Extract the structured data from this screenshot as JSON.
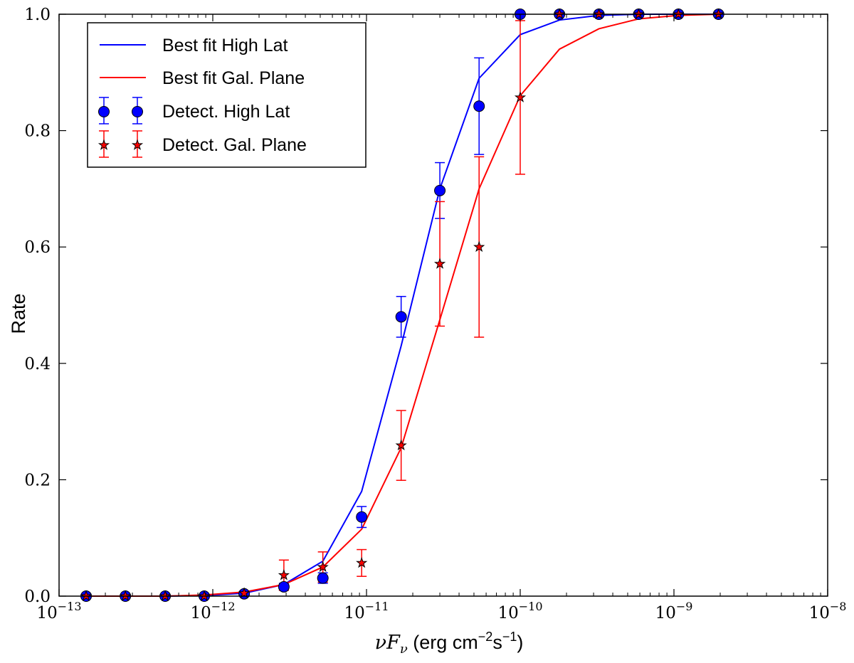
{
  "chart_data": {
    "type": "scatter",
    "title": "",
    "xscale": "log",
    "xlim": [
      1e-13,
      1e-08
    ],
    "ylim": [
      0.0,
      1.0
    ],
    "xlabel": {
      "nu_prefix": "ν",
      "F": "F",
      "sub": "ν",
      "unit_open": " (erg cm",
      "unit_exp1": "−2",
      "unit_mid": "s",
      "unit_exp2": "−1",
      "unit_close": ")"
    },
    "ylabel": "Rate",
    "x_ticks": [
      {
        "base": "10",
        "exp": "−13",
        "value": 1e-13
      },
      {
        "base": "10",
        "exp": "−12",
        "value": 1e-12
      },
      {
        "base": "10",
        "exp": "−11",
        "value": 1e-11
      },
      {
        "base": "10",
        "exp": "−10",
        "value": 1e-10
      },
      {
        "base": "10",
        "exp": "−9",
        "value": 1e-09
      },
      {
        "base": "10",
        "exp": "−8",
        "value": 1e-08
      }
    ],
    "y_ticks": [
      {
        "label": "0.0",
        "value": 0.0
      },
      {
        "label": "0.2",
        "value": 0.2
      },
      {
        "label": "0.4",
        "value": 0.4
      },
      {
        "label": "0.6",
        "value": 0.6
      },
      {
        "label": "0.8",
        "value": 0.8
      },
      {
        "label": "1.0",
        "value": 1.0
      }
    ],
    "legend_position": "upper-left",
    "series": [
      {
        "name": "Best fit High Lat",
        "kind": "line",
        "color": "#0000ff",
        "x": [
          1.5e-13,
          2.7e-13,
          4.9e-13,
          8.8e-13,
          1.6e-12,
          2.9e-12,
          5.2e-12,
          9.3e-12,
          1.68e-11,
          3e-11,
          5.4e-11,
          1e-10,
          1.8e-10,
          3.25e-10,
          5.9e-10,
          1.07e-09,
          1.95e-09
        ],
        "y": [
          0.0,
          0.0,
          0.0,
          0.001,
          0.005,
          0.02,
          0.06,
          0.18,
          0.43,
          0.7,
          0.89,
          0.965,
          0.99,
          0.998,
          1.0,
          1.0,
          1.0
        ]
      },
      {
        "name": "Best fit Gal. Plane",
        "kind": "line",
        "color": "#ff0000",
        "x": [
          1.5e-13,
          2.7e-13,
          4.9e-13,
          8.8e-13,
          1.6e-12,
          2.9e-12,
          5.2e-12,
          9.3e-12,
          1.68e-11,
          3e-11,
          5.4e-11,
          1e-10,
          1.8e-10,
          3.25e-10,
          5.9e-10,
          1.07e-09,
          1.95e-09
        ],
        "y": [
          0.0,
          0.0,
          0.0,
          0.002,
          0.007,
          0.02,
          0.05,
          0.115,
          0.255,
          0.475,
          0.7,
          0.86,
          0.94,
          0.975,
          0.992,
          0.998,
          1.0
        ]
      },
      {
        "name": "Detect. High Lat",
        "kind": "points",
        "marker": "circle",
        "color": "#0000ff",
        "x": [
          1.5e-13,
          2.7e-13,
          4.9e-13,
          8.8e-13,
          1.6e-12,
          2.9e-12,
          5.2e-12,
          9.3e-12,
          1.68e-11,
          3e-11,
          5.4e-11,
          1e-10,
          1.8e-10,
          3.25e-10,
          5.9e-10,
          1.07e-09,
          1.95e-09
        ],
        "y": [
          0.0,
          0.0,
          0.0,
          0.0,
          0.004,
          0.016,
          0.031,
          0.136,
          0.48,
          0.697,
          0.842,
          1.0,
          1.0,
          1.0,
          1.0,
          1.0,
          1.0
        ],
        "yerr": [
          0.0,
          0.0,
          0.0,
          0.0,
          0.003,
          0.006,
          0.009,
          0.018,
          0.035,
          0.048,
          0.083,
          0.0,
          0.0,
          0.0,
          0.0,
          0.0,
          0.0
        ]
      },
      {
        "name": "Detect. Gal. Plane",
        "kind": "points",
        "marker": "star",
        "color": "#ff0000",
        "x": [
          1.5e-13,
          2.7e-13,
          4.9e-13,
          8.8e-13,
          1.6e-12,
          2.9e-12,
          5.2e-12,
          9.3e-12,
          1.68e-11,
          3e-11,
          5.4e-11,
          1e-10,
          1.8e-10,
          3.25e-10,
          5.9e-10,
          1.07e-09,
          1.95e-09
        ],
        "y": [
          0.0,
          0.0,
          0.0,
          0.0,
          0.005,
          0.036,
          0.05,
          0.057,
          0.259,
          0.571,
          0.6,
          0.857,
          1.0,
          1.0,
          1.0,
          1.0,
          1.0
        ],
        "yerr": [
          0.0,
          0.0,
          0.0,
          0.0,
          0.003,
          0.026,
          0.026,
          0.023,
          0.06,
          0.107,
          0.155,
          0.132,
          0.0,
          0.0,
          0.0,
          0.0,
          0.0
        ]
      }
    ]
  }
}
